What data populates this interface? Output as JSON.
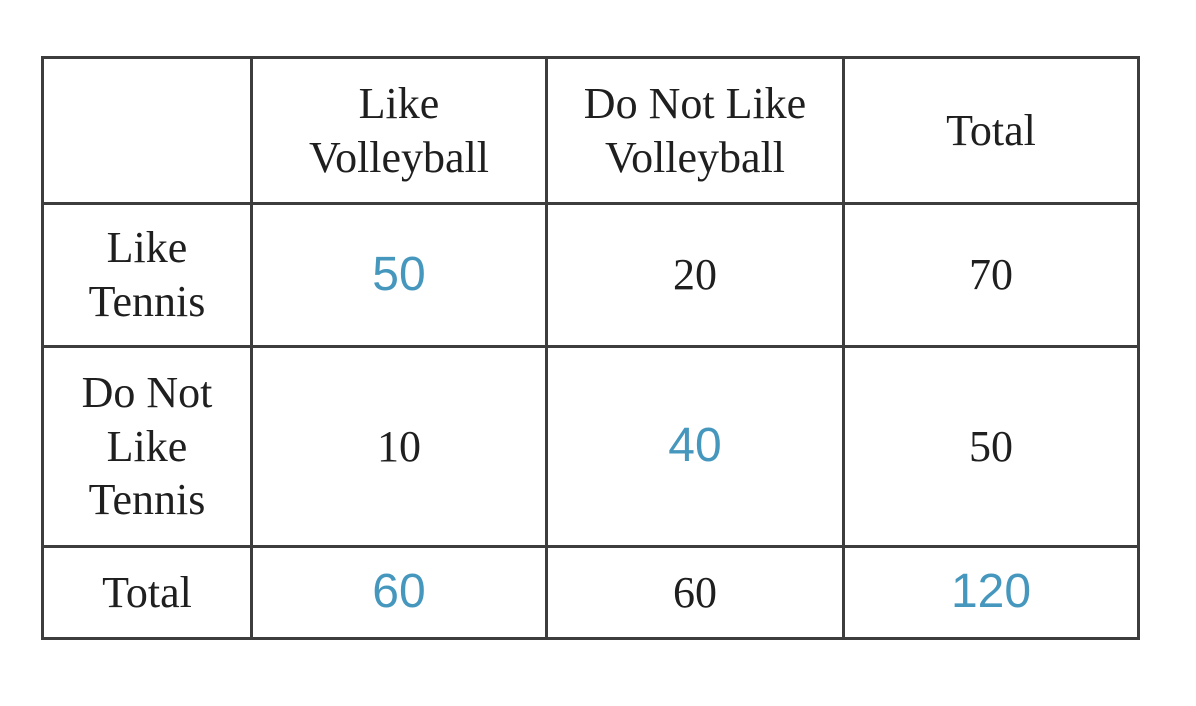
{
  "colors": {
    "accent": "#4697be",
    "text": "#1f1f1f",
    "border": "#3d3d3d",
    "background": "#ffffff"
  },
  "table": {
    "column_headers": [
      "",
      "Like\nVolleyball",
      "Do Not Like\nVolleyball",
      "Total"
    ],
    "rows": [
      {
        "label": "Like\nTennis",
        "values": [
          "50",
          "20",
          "70"
        ],
        "highlighted": [
          true,
          false,
          false
        ]
      },
      {
        "label": "Do Not\nLike\nTennis",
        "values": [
          "10",
          "40",
          "50"
        ],
        "highlighted": [
          false,
          true,
          false
        ]
      },
      {
        "label": "Total",
        "values": [
          "60",
          "60",
          "120"
        ],
        "highlighted": [
          true,
          false,
          true
        ]
      }
    ]
  },
  "chart_data": {
    "type": "table",
    "title": "",
    "columns": [
      "",
      "Like Volleyball",
      "Do Not Like Volleyball",
      "Total"
    ],
    "rows": [
      [
        "Like Tennis",
        50,
        20,
        70
      ],
      [
        "Do Not Like Tennis",
        10,
        40,
        50
      ],
      [
        "Total",
        60,
        60,
        120
      ]
    ],
    "highlighted_values": [
      50,
      40,
      60,
      120
    ],
    "highlight_color": "#4697be",
    "layout": "two-way frequency table, grid borders on, all cells centered"
  }
}
